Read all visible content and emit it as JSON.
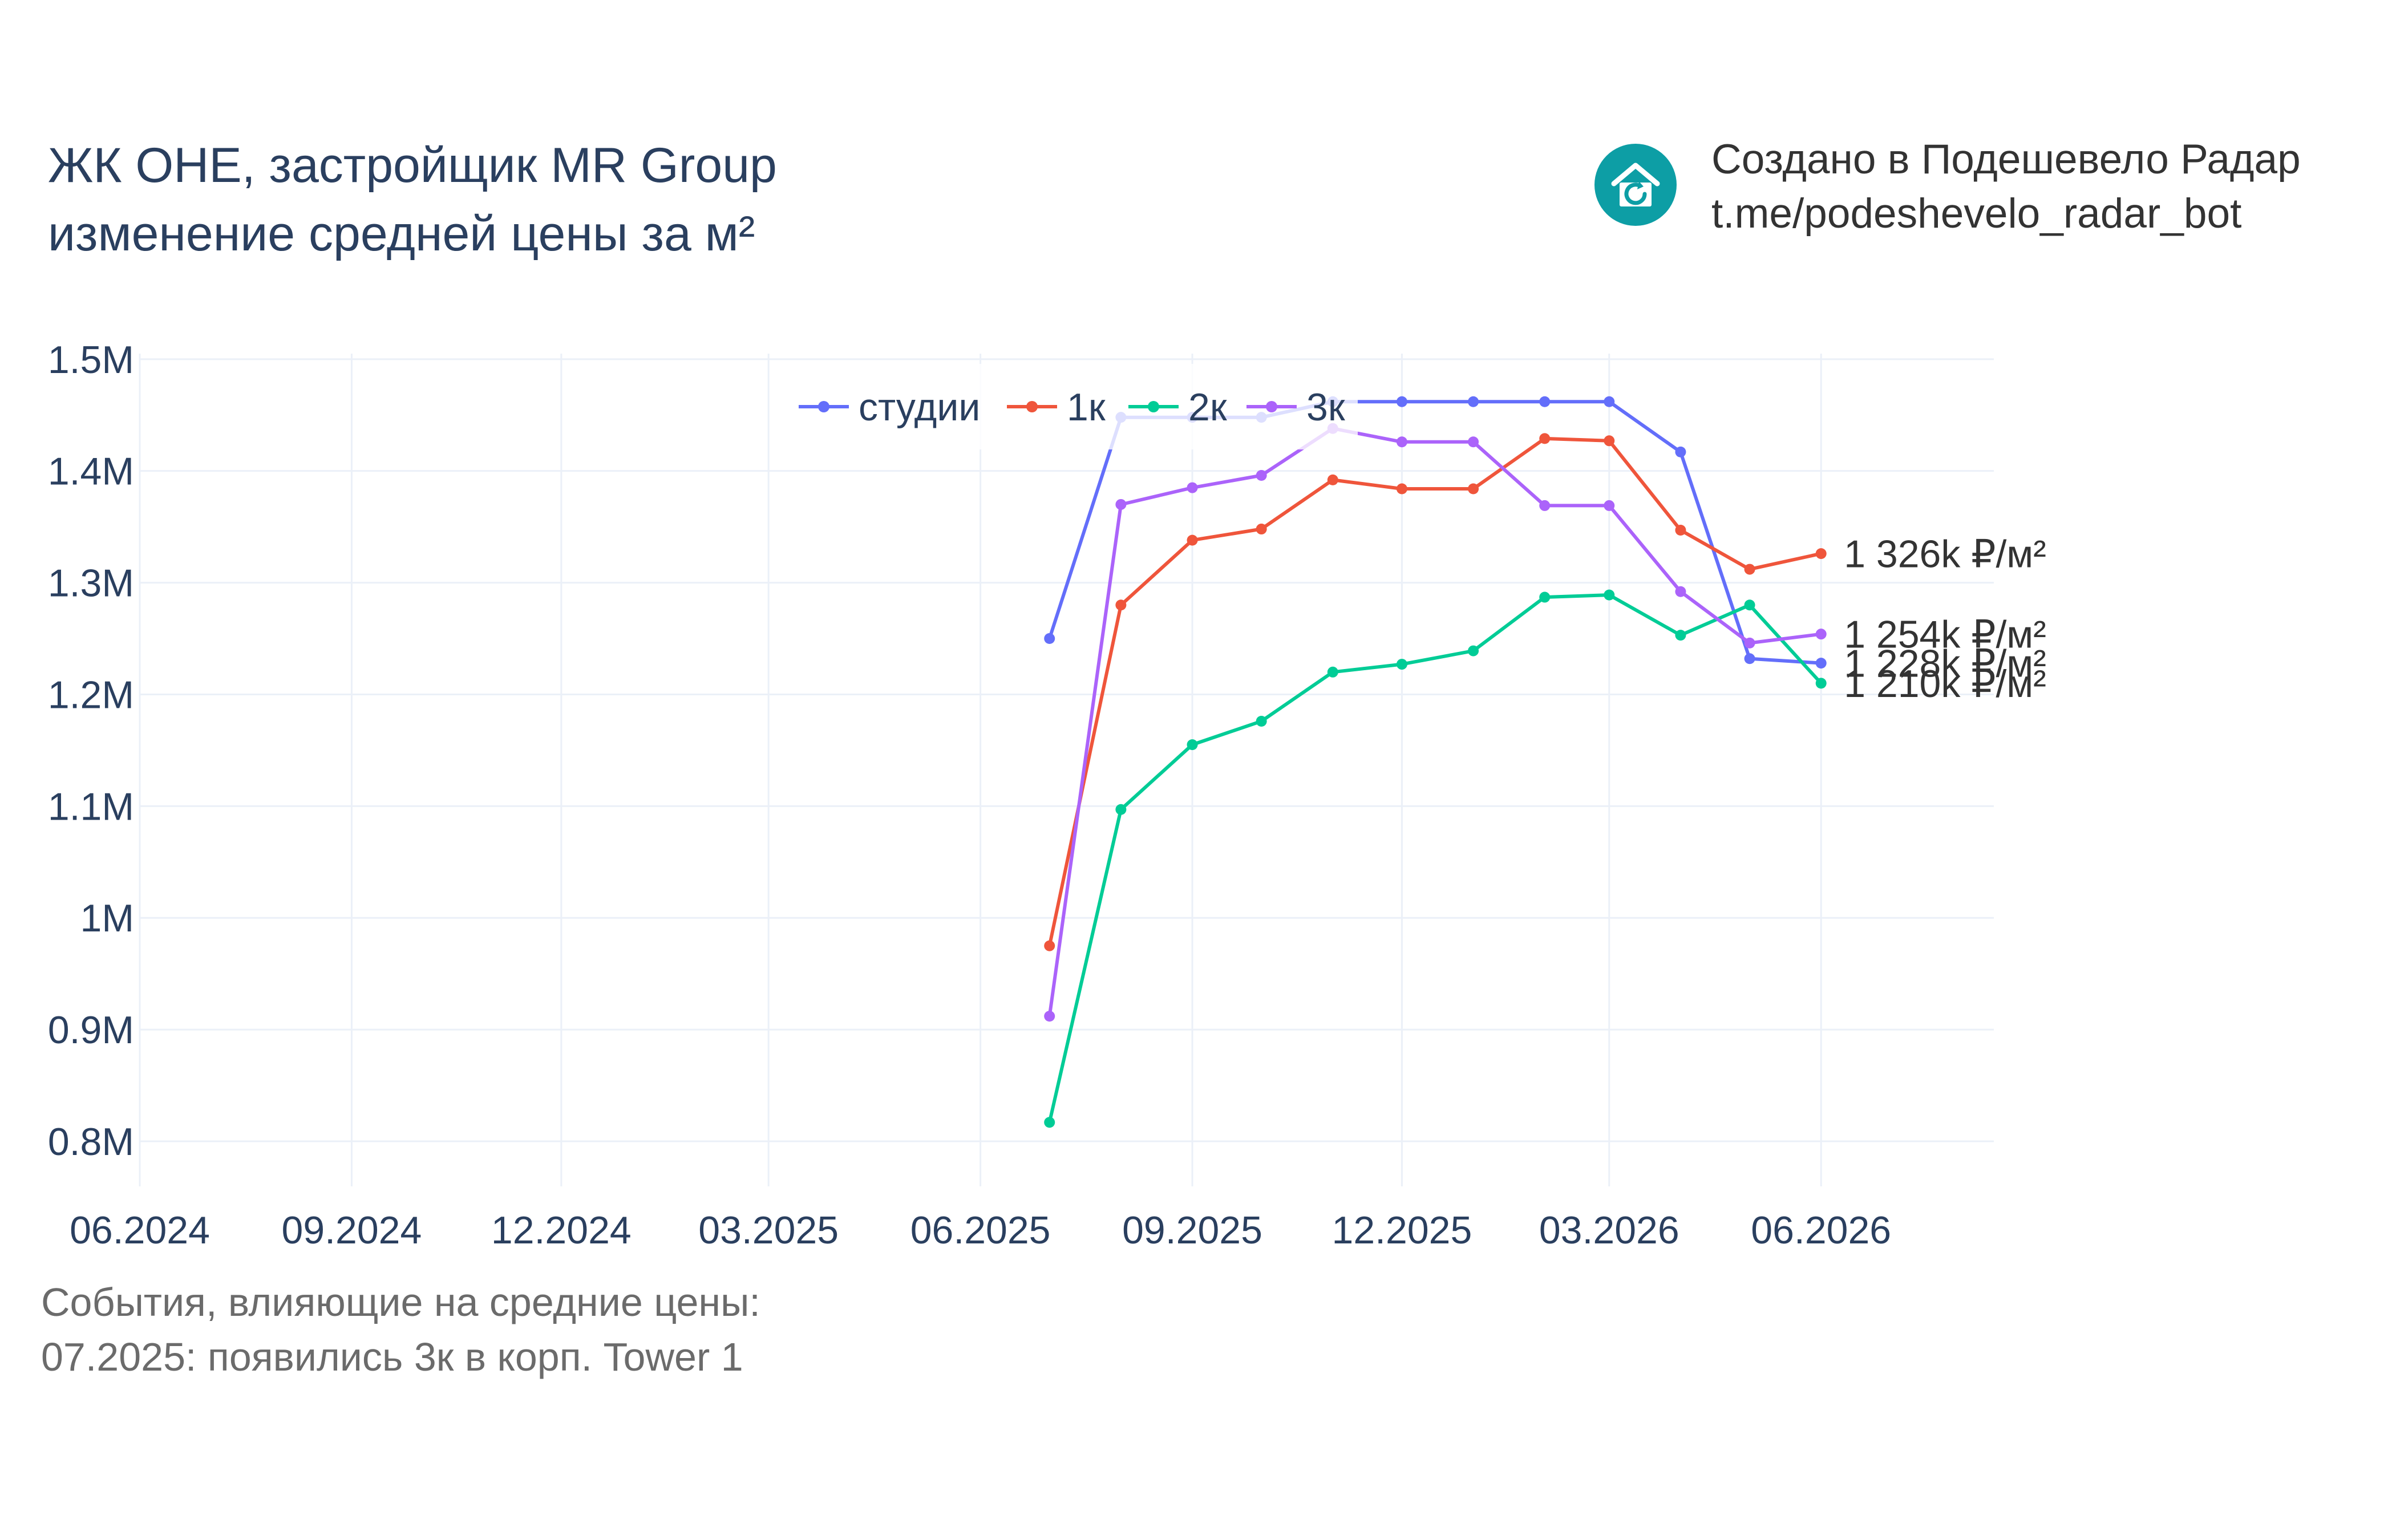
{
  "header": {
    "title_line1": "ЖК ОНЕ, застройщик MR Group",
    "title_line2": "изменение средней цены за м²"
  },
  "brand": {
    "line1": "Создано в Подешевело Радар",
    "line2": "t.me/podeshevelo_radar_bot",
    "logo_icon": "house-refresh-icon",
    "logo_color": "#0d9ea5"
  },
  "events": {
    "heading": "События, влияющие на средние цены:",
    "items": [
      "07.2025: появились 3к в корп. Tower 1"
    ]
  },
  "chart_data": {
    "type": "line",
    "title": "",
    "xlabel": "",
    "ylabel": "",
    "x_ticks": [
      "06.2024",
      "09.2024",
      "12.2024",
      "03.2025",
      "06.2025",
      "09.2025",
      "12.2025",
      "03.2026",
      "06.2026"
    ],
    "y_ticks": [
      "0.8M",
      "0.9M",
      "1M",
      "1.1M",
      "1.2M",
      "1.3M",
      "1.4M",
      "1.5M"
    ],
    "y_tick_values": [
      800000,
      900000,
      1000000,
      1100000,
      1200000,
      1300000,
      1400000,
      1500000
    ],
    "xlim": [
      "2024-06-01",
      "2026-08-15"
    ],
    "ylim": [
      775000,
      1505000
    ],
    "grid": true,
    "legend_position": "top-center",
    "x": [
      "2025-07-01",
      "2025-08-01",
      "2025-09-01",
      "2025-10-01",
      "2025-11-01",
      "2025-12-01",
      "2026-01-01",
      "2026-02-01",
      "2026-03-01",
      "2026-04-01",
      "2026-05-01",
      "2026-06-01"
    ],
    "series": [
      {
        "name": "студии",
        "color": "#636efa",
        "values": [
          1250000,
          1448000,
          1448000,
          1448000,
          1462000,
          1462000,
          1462000,
          1462000,
          1462000,
          1417000,
          1232000,
          1228000
        ],
        "end_label": "1 228k ₽/м²"
      },
      {
        "name": "1к",
        "color": "#ef553b",
        "values": [
          975000,
          1280000,
          1338000,
          1348000,
          1392000,
          1384000,
          1384000,
          1429000,
          1427000,
          1347000,
          1312000,
          1326000
        ],
        "end_label": "1 326k ₽/м²"
      },
      {
        "name": "2к",
        "color": "#00cc96",
        "values": [
          817000,
          1097000,
          1155000,
          1176000,
          1220000,
          1227000,
          1239000,
          1287000,
          1289000,
          1253000,
          1280000,
          1210000
        ],
        "end_label": "1 210k ₽/м²"
      },
      {
        "name": "3к",
        "color": "#ab63fa",
        "values": [
          912000,
          1370000,
          1385000,
          1396000,
          1438000,
          1426000,
          1426000,
          1369000,
          1369000,
          1292000,
          1246000,
          1254000
        ],
        "end_label": "1 254k ₽/м²"
      }
    ]
  }
}
